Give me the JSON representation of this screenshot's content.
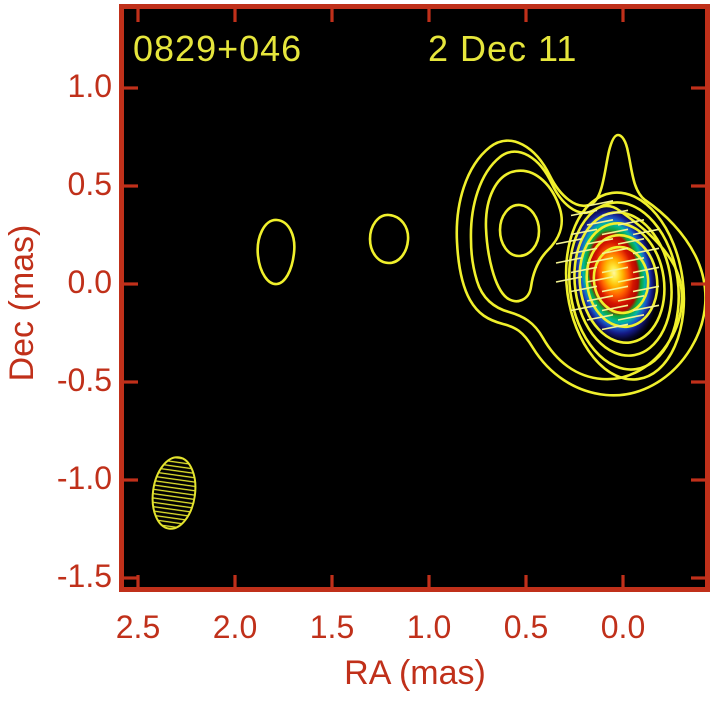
{
  "title": {
    "source": "0829+046",
    "epoch": "2 Dec 11"
  },
  "axes": {
    "x_label": "RA (mas)",
    "y_label": "Dec (mas)",
    "x_tick_labels": [
      "2.5",
      "2.0",
      "1.5",
      "1.0",
      "0.5",
      "0.0"
    ],
    "y_tick_labels": [
      "1.0",
      "0.5",
      "0.0",
      "-0.5",
      "-1.0",
      "-1.5"
    ]
  },
  "colors": {
    "page_background": "#ffffff",
    "plot_background": "#000000",
    "frame_red": "#c0301a",
    "label_red": "#c0301a",
    "annotation_yellow": "#e6e63c",
    "contour_yellow": "#f0f02c",
    "pol_tick_yellow": "#f4f492",
    "beam_yellow": "#e3e32e",
    "core_colormap_center_to_edge": [
      "#fff7a0",
      "#ffe93c",
      "#ffb400",
      "#ff5e00",
      "#d41400",
      "#b00800",
      "#13a12e",
      "#00b9a0",
      "#1b59c8",
      "#141a86",
      "#06062e",
      "#000000"
    ]
  },
  "chart_data": {
    "type": "contour_map",
    "title": "0829+046",
    "subtitle": "2 Dec 11",
    "xlabel": "RA (mas)",
    "ylabel": "Dec (mas)",
    "x_ticks": [
      2.5,
      2.0,
      1.5,
      1.0,
      0.5,
      0.0
    ],
    "y_ticks": [
      1.0,
      0.5,
      0.0,
      -0.5,
      -1.0,
      -1.5
    ],
    "xlim": [
      2.65,
      -0.45
    ],
    "ylim": [
      -1.56,
      1.42
    ],
    "x_axis_reversed": true,
    "grid": false,
    "legend": "none",
    "background": "black",
    "contour_color": "yellow",
    "contour_levels_count": 9,
    "components": [
      {
        "name": "core",
        "ra": 0.04,
        "dec": 0.02,
        "description": "bright compact core: rainbow false-color (polarized) intensity peak, ~6 closed contour rings plus 2 outer contours, overlaid with slanted polarization EVPA ticks"
      },
      {
        "name": "inner-jet-knot",
        "ra": 0.55,
        "dec": 0.26,
        "description": "jet knot enclosed by 2 closed contours, connected to the core by the two outermost contours; narrow contour spike above core at dec ~ 0.55"
      },
      {
        "name": "jet-component-2",
        "ra": 1.21,
        "dec": 0.22,
        "description": "faint component, single closed contour"
      },
      {
        "name": "jet-component-3",
        "ra": 1.8,
        "dec": 0.16,
        "description": "faint component, single closed contour (egg-shaped)"
      }
    ],
    "beam": {
      "ra": 2.33,
      "dec": -1.03,
      "major_mas": 0.37,
      "minor_mas": 0.22,
      "description": "restoring beam shown as hatched yellow ellipse at lower left"
    }
  }
}
